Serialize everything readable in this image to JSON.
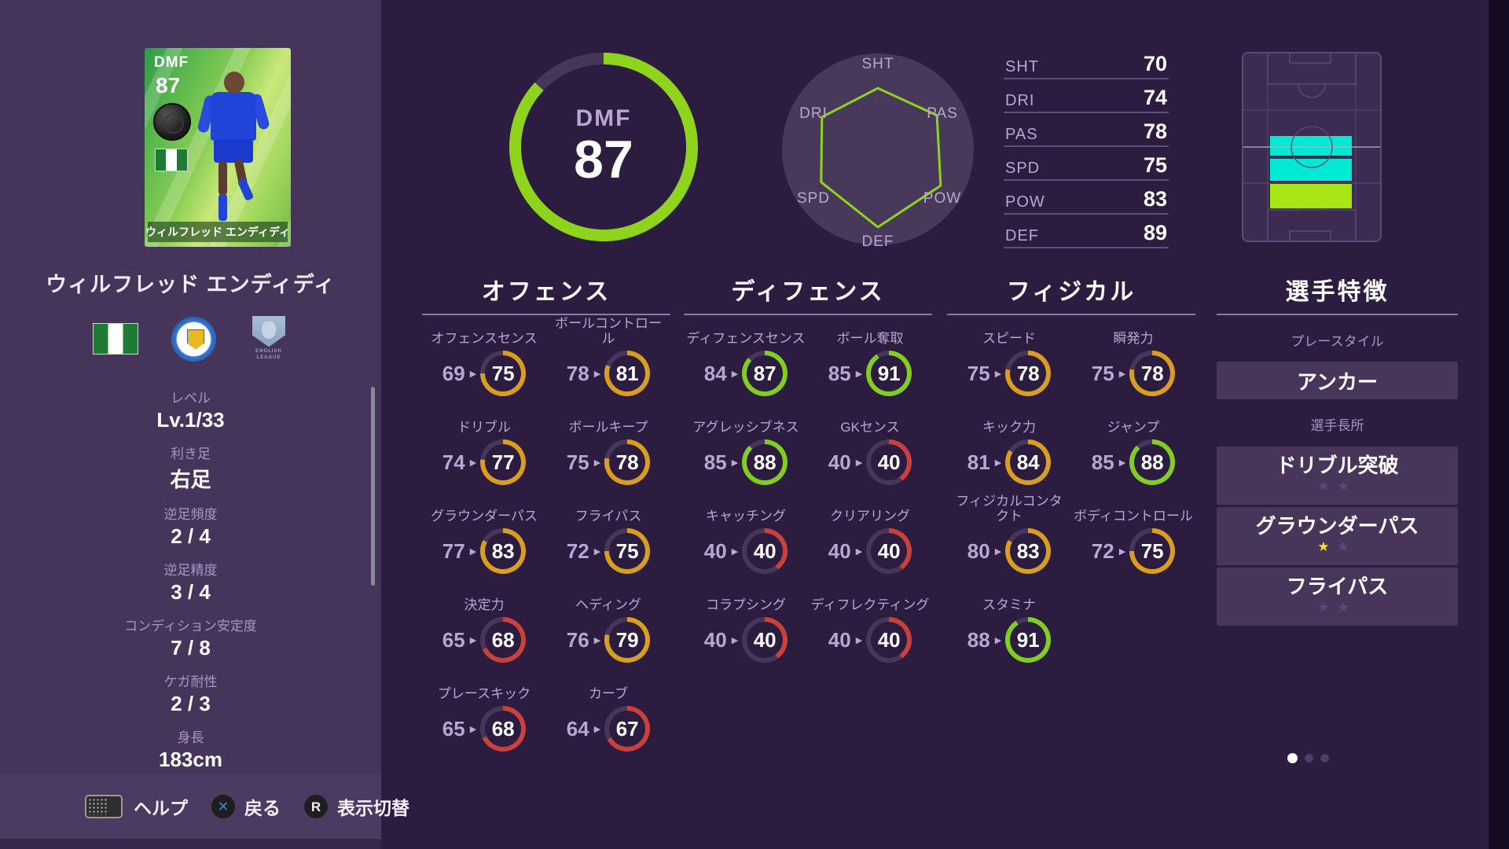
{
  "card": {
    "position": "DMF",
    "rating": "87",
    "name": "ウィルフレッド エンディディ"
  },
  "player_name": "ウィルフレッド エンディディ",
  "overall": {
    "position": "DMF",
    "rating": "87",
    "percent": 87
  },
  "league_badge_text": "ENGLISH LEAGUE",
  "profile": [
    {
      "label": "レベル",
      "value": "Lv.1/33"
    },
    {
      "label": "利き足",
      "value": "右足"
    },
    {
      "label": "逆足頻度",
      "value": "2 / 4"
    },
    {
      "label": "逆足精度",
      "value": "3 / 4"
    },
    {
      "label": "コンディション安定度",
      "value": "7 / 8"
    },
    {
      "label": "ケガ耐性",
      "value": "2 / 3"
    },
    {
      "label": "身長",
      "value": "183cm"
    }
  ],
  "radar_axes": [
    {
      "label": "SHT",
      "value": 70
    },
    {
      "label": "PAS",
      "value": 78
    },
    {
      "label": "POW",
      "value": 83
    },
    {
      "label": "DEF",
      "value": 89
    },
    {
      "label": "SPD",
      "value": 75
    },
    {
      "label": "DRI",
      "value": 74
    }
  ],
  "summary_stats": [
    {
      "label": "SHT",
      "value": 70
    },
    {
      "label": "DRI",
      "value": 74
    },
    {
      "label": "PAS",
      "value": 78
    },
    {
      "label": "SPD",
      "value": 75
    },
    {
      "label": "POW",
      "value": 83
    },
    {
      "label": "DEF",
      "value": 89
    }
  ],
  "sections": [
    {
      "title": "オフェンス",
      "stats": [
        {
          "label": "オフェンスセンス",
          "base": 69,
          "value": 75
        },
        {
          "label": "ボールコントロール",
          "base": 78,
          "value": 81
        },
        {
          "label": "ドリブル",
          "base": 74,
          "value": 77
        },
        {
          "label": "ボールキープ",
          "base": 75,
          "value": 78
        },
        {
          "label": "グラウンダーパス",
          "base": 77,
          "value": 83
        },
        {
          "label": "フライパス",
          "base": 72,
          "value": 75
        },
        {
          "label": "決定力",
          "base": 65,
          "value": 68
        },
        {
          "label": "ヘディング",
          "base": 76,
          "value": 79
        },
        {
          "label": "プレースキック",
          "base": 65,
          "value": 68
        },
        {
          "label": "カーブ",
          "base": 64,
          "value": 67
        }
      ]
    },
    {
      "title": "ディフェンス",
      "stats": [
        {
          "label": "ディフェンスセンス",
          "base": 84,
          "value": 87
        },
        {
          "label": "ボール奪取",
          "base": 85,
          "value": 91
        },
        {
          "label": "アグレッシブネス",
          "base": 85,
          "value": 88
        },
        {
          "label": "GKセンス",
          "base": 40,
          "value": 40
        },
        {
          "label": "キャッチング",
          "base": 40,
          "value": 40
        },
        {
          "label": "クリアリング",
          "base": 40,
          "value": 40
        },
        {
          "label": "コラプシング",
          "base": 40,
          "value": 40
        },
        {
          "label": "ディフレクティング",
          "base": 40,
          "value": 40
        }
      ]
    },
    {
      "title": "フィジカル",
      "stats": [
        {
          "label": "スピード",
          "base": 75,
          "value": 78
        },
        {
          "label": "瞬発力",
          "base": 75,
          "value": 78
        },
        {
          "label": "キック力",
          "base": 81,
          "value": 84
        },
        {
          "label": "ジャンプ",
          "base": 85,
          "value": 88
        },
        {
          "label": "フィジカルコンタクト",
          "base": 80,
          "value": 83
        },
        {
          "label": "ボディコントロール",
          "base": 72,
          "value": 75
        },
        {
          "label": "スタミナ",
          "base": 88,
          "value": 91
        }
      ]
    }
  ],
  "traits": {
    "title": "選手特徴",
    "playstyle_label": "プレースタイル",
    "playstyle": "アンカー",
    "skills_label": "選手長所",
    "skill_slots": 2,
    "skills": [
      {
        "name": "ドリブル突破",
        "stars": 0
      },
      {
        "name": "グラウンダーパス",
        "stars": 1
      },
      {
        "name": "フライパス",
        "stars": 0
      }
    ]
  },
  "position_map": {
    "bands": [
      {
        "role": "cmf-band",
        "color": "#00e9d2"
      },
      {
        "role": "cmf-band",
        "color": "#00e9d2"
      },
      {
        "role": "dmf-band",
        "color": "#a9e514"
      }
    ]
  },
  "footer": [
    {
      "icon": "touchpad-icon",
      "label": "ヘルプ"
    },
    {
      "icon": "x-button-icon",
      "label": "戻る"
    },
    {
      "icon": "r-button-icon",
      "label": "表示切替"
    }
  ],
  "pagination": {
    "count": 3,
    "active": 0
  },
  "colors": {
    "accent_green": "#8ed31c",
    "ring_green": "#82ce1f",
    "ring_orange": "#d99e1e",
    "ring_red": "#c9413a",
    "ring_track": "#46365a",
    "star_yellow": "#f3e11c"
  }
}
